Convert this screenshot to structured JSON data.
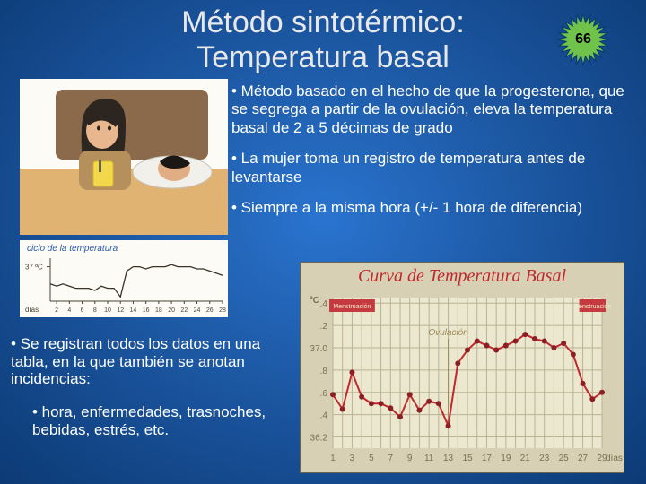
{
  "title": "Método sintotérmico:\nTemperatura basal",
  "page_number": "66",
  "badge": {
    "fill": "#6fc24a",
    "stroke": "#0a3a6a"
  },
  "bullets": [
    "• Método basado en el hecho de que la progesterona, que se segrega a partir de la ovulación, eleva la temperatura basal de 2 a 5 décimas de grado",
    "• La mujer toma un registro de temperatura antes de levantarse",
    "• Siempre a la misma hora (+/- 1 hora de diferencia)"
  ],
  "note": "• Se registran todos los datos en una tabla, en la que también se anotan incidencias:",
  "subnote": "• hora, enfermedades, trasnoches, bebidas, estrés, etc.",
  "illustration": {
    "background": "#fdfbf5",
    "wall": "#cdb9a4",
    "headboard": "#8a6a4a",
    "pillow": "#f2f0ea",
    "blanket": "#e0b373",
    "woman": {
      "hair": "#2d2520",
      "skin": "#e8b78e",
      "sweater": "#b5905c",
      "cup": "#f2d84a"
    },
    "man": {
      "hair": "#1a1715",
      "skin": "#e0ad85"
    }
  },
  "small_chart": {
    "background": "#fdfbf5",
    "title": "ciclo de la temperatura",
    "title_color": "#2a5aa8",
    "title_fontsize": 10,
    "axis_color": "#4a4335",
    "line_color": "#3a3326",
    "ylabel_37": "37 ºC",
    "ylabel_arrow": "→",
    "xlabel": "días",
    "x_ticks": [
      "2",
      "4",
      "6",
      "8",
      "10",
      "12",
      "14",
      "16",
      "18",
      "20",
      "22",
      "24",
      "26",
      "28"
    ],
    "values": [
      36.6,
      36.55,
      36.6,
      36.55,
      36.5,
      36.5,
      36.5,
      36.45,
      36.55,
      36.5,
      36.5,
      36.3,
      36.9,
      37.0,
      37.0,
      36.95,
      37.0,
      37.0,
      37.0,
      37.05,
      37.0,
      37.0,
      37.0,
      36.95,
      36.95,
      36.9,
      36.85,
      36.8
    ],
    "ymin": 36.2,
    "ymax": 37.2
  },
  "big_chart": {
    "type": "line",
    "title": "Curva de Temperatura Basal",
    "title_color": "#c1282d",
    "title_fontsize": 20,
    "panel_bg": "#d7d0b5",
    "plot_bg": "#ece7cf",
    "grid_color": "#b9b293",
    "axis_text_color": "#7a7050",
    "line_color": "#c1282d",
    "line_width": 2,
    "marker_color": "#8a1f24",
    "marker_size": 3,
    "yunit": "ºC",
    "ylim": [
      36.1,
      37.45
    ],
    "y_ticks": [
      36.2,
      36.4,
      36.6,
      36.8,
      37.0,
      37.2,
      37.4
    ],
    "y_tick_labels": [
      "36.2",
      ".4",
      ".6",
      ".8",
      "37.0",
      ".2",
      ".4"
    ],
    "x_ticks": [
      1,
      3,
      5,
      7,
      9,
      11,
      13,
      15,
      17,
      19,
      21,
      23,
      25,
      27,
      29
    ],
    "x_tick_labels": [
      "1",
      "3",
      "5",
      "7",
      "9",
      "11",
      "13",
      "15",
      "17",
      "19",
      "21",
      "23",
      "25",
      "27",
      "29"
    ],
    "x_label": "días",
    "values": [
      36.58,
      36.45,
      36.78,
      36.56,
      36.5,
      36.5,
      36.46,
      36.38,
      36.58,
      36.44,
      36.52,
      36.5,
      36.3,
      36.86,
      36.98,
      37.06,
      37.02,
      36.98,
      37.02,
      37.06,
      37.12,
      37.08,
      37.06,
      37.0,
      37.04,
      36.94,
      36.68,
      36.54,
      36.6
    ],
    "menstruation_label": "Menstruación",
    "menstruation_bg": "#c43a3f",
    "menstruation_text": "#f3e9c8",
    "menstruation_ranges": [
      [
        1,
        5
      ],
      [
        27,
        29
      ]
    ],
    "ovulation_label": "Ovulación",
    "ovulation_color": "#9c8a55",
    "ovulation_day": 13
  }
}
